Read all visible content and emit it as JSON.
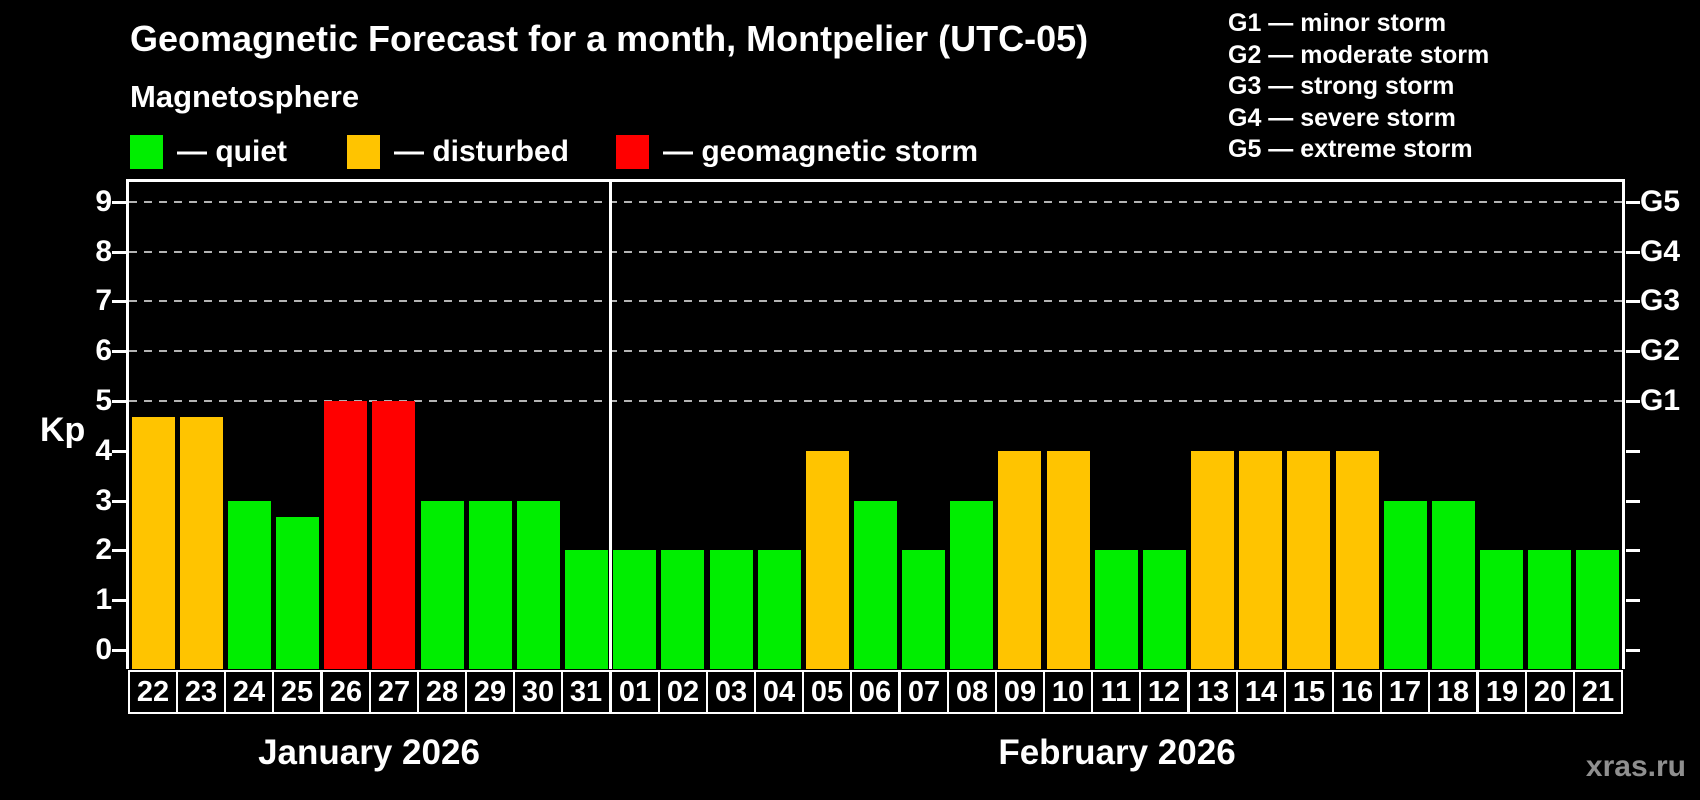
{
  "title": "Geomagnetic Forecast for a month, Montpelier (UTC-05)",
  "subtitle": "Magnetosphere",
  "watermark": "xras.ru",
  "legend": {
    "items": [
      {
        "id": "quiet",
        "label": "— quiet",
        "color": "#00ee00"
      },
      {
        "id": "disturbed",
        "label": "— disturbed",
        "color": "#ffc400"
      },
      {
        "id": "storm",
        "label": "— geomagnetic storm",
        "color": "#ff0000"
      }
    ]
  },
  "storm_scale_legend": {
    "lines": [
      "G1 — minor storm",
      "G2 — moderate storm",
      "G3 — strong storm",
      "G4 — severe storm",
      "G5 — extreme storm"
    ]
  },
  "chart_data": {
    "type": "bar",
    "ylabel": "Kp",
    "ylim": [
      0,
      9
    ],
    "yticks": [
      0,
      1,
      2,
      3,
      4,
      5,
      6,
      7,
      8,
      9
    ],
    "gridlines_at": [
      5,
      6,
      7,
      8,
      9
    ],
    "grid_style": "dashed horizontal gridlines at storm levels only",
    "right_axis_labels": [
      {
        "kp": 5,
        "label": "G1"
      },
      {
        "kp": 6,
        "label": "G2"
      },
      {
        "kp": 7,
        "label": "G3"
      },
      {
        "kp": 8,
        "label": "G4"
      },
      {
        "kp": 9,
        "label": "G5"
      }
    ],
    "status_colors": {
      "quiet": "#00ee00",
      "disturbed": "#ffc400",
      "storm": "#ff0000"
    },
    "months": [
      {
        "label": "January 2026",
        "short": "jan",
        "bars": [
          {
            "day": "22",
            "kp": 4.67,
            "status": "disturbed"
          },
          {
            "day": "23",
            "kp": 4.67,
            "status": "disturbed"
          },
          {
            "day": "24",
            "kp": 3,
            "status": "quiet"
          },
          {
            "day": "25",
            "kp": 2.67,
            "status": "quiet"
          },
          {
            "day": "26",
            "kp": 5,
            "status": "storm"
          },
          {
            "day": "27",
            "kp": 5,
            "status": "storm"
          },
          {
            "day": "28",
            "kp": 3,
            "status": "quiet"
          },
          {
            "day": "29",
            "kp": 3,
            "status": "quiet"
          },
          {
            "day": "30",
            "kp": 3,
            "status": "quiet"
          },
          {
            "day": "31",
            "kp": 2,
            "status": "quiet"
          }
        ]
      },
      {
        "label": "February 2026",
        "short": "feb",
        "bars": [
          {
            "day": "01",
            "kp": 2,
            "status": "quiet"
          },
          {
            "day": "02",
            "kp": 2,
            "status": "quiet"
          },
          {
            "day": "03",
            "kp": 2,
            "status": "quiet"
          },
          {
            "day": "04",
            "kp": 2,
            "status": "quiet"
          },
          {
            "day": "05",
            "kp": 4,
            "status": "disturbed"
          },
          {
            "day": "06",
            "kp": 3,
            "status": "quiet"
          },
          {
            "day": "07",
            "kp": 2,
            "status": "quiet"
          },
          {
            "day": "08",
            "kp": 3,
            "status": "quiet"
          },
          {
            "day": "09",
            "kp": 4,
            "status": "disturbed"
          },
          {
            "day": "10",
            "kp": 4,
            "status": "disturbed"
          },
          {
            "day": "11",
            "kp": 2,
            "status": "quiet"
          },
          {
            "day": "12",
            "kp": 2,
            "status": "quiet"
          },
          {
            "day": "13",
            "kp": 4,
            "status": "disturbed"
          },
          {
            "day": "14",
            "kp": 4,
            "status": "disturbed"
          },
          {
            "day": "15",
            "kp": 4,
            "status": "disturbed"
          },
          {
            "day": "16",
            "kp": 4,
            "status": "disturbed"
          },
          {
            "day": "17",
            "kp": 3,
            "status": "quiet"
          },
          {
            "day": "18",
            "kp": 3,
            "status": "quiet"
          },
          {
            "day": "19",
            "kp": 2,
            "status": "quiet"
          },
          {
            "day": "20",
            "kp": 2,
            "status": "quiet"
          },
          {
            "day": "21",
            "kp": 2,
            "status": "quiet"
          }
        ]
      }
    ]
  }
}
